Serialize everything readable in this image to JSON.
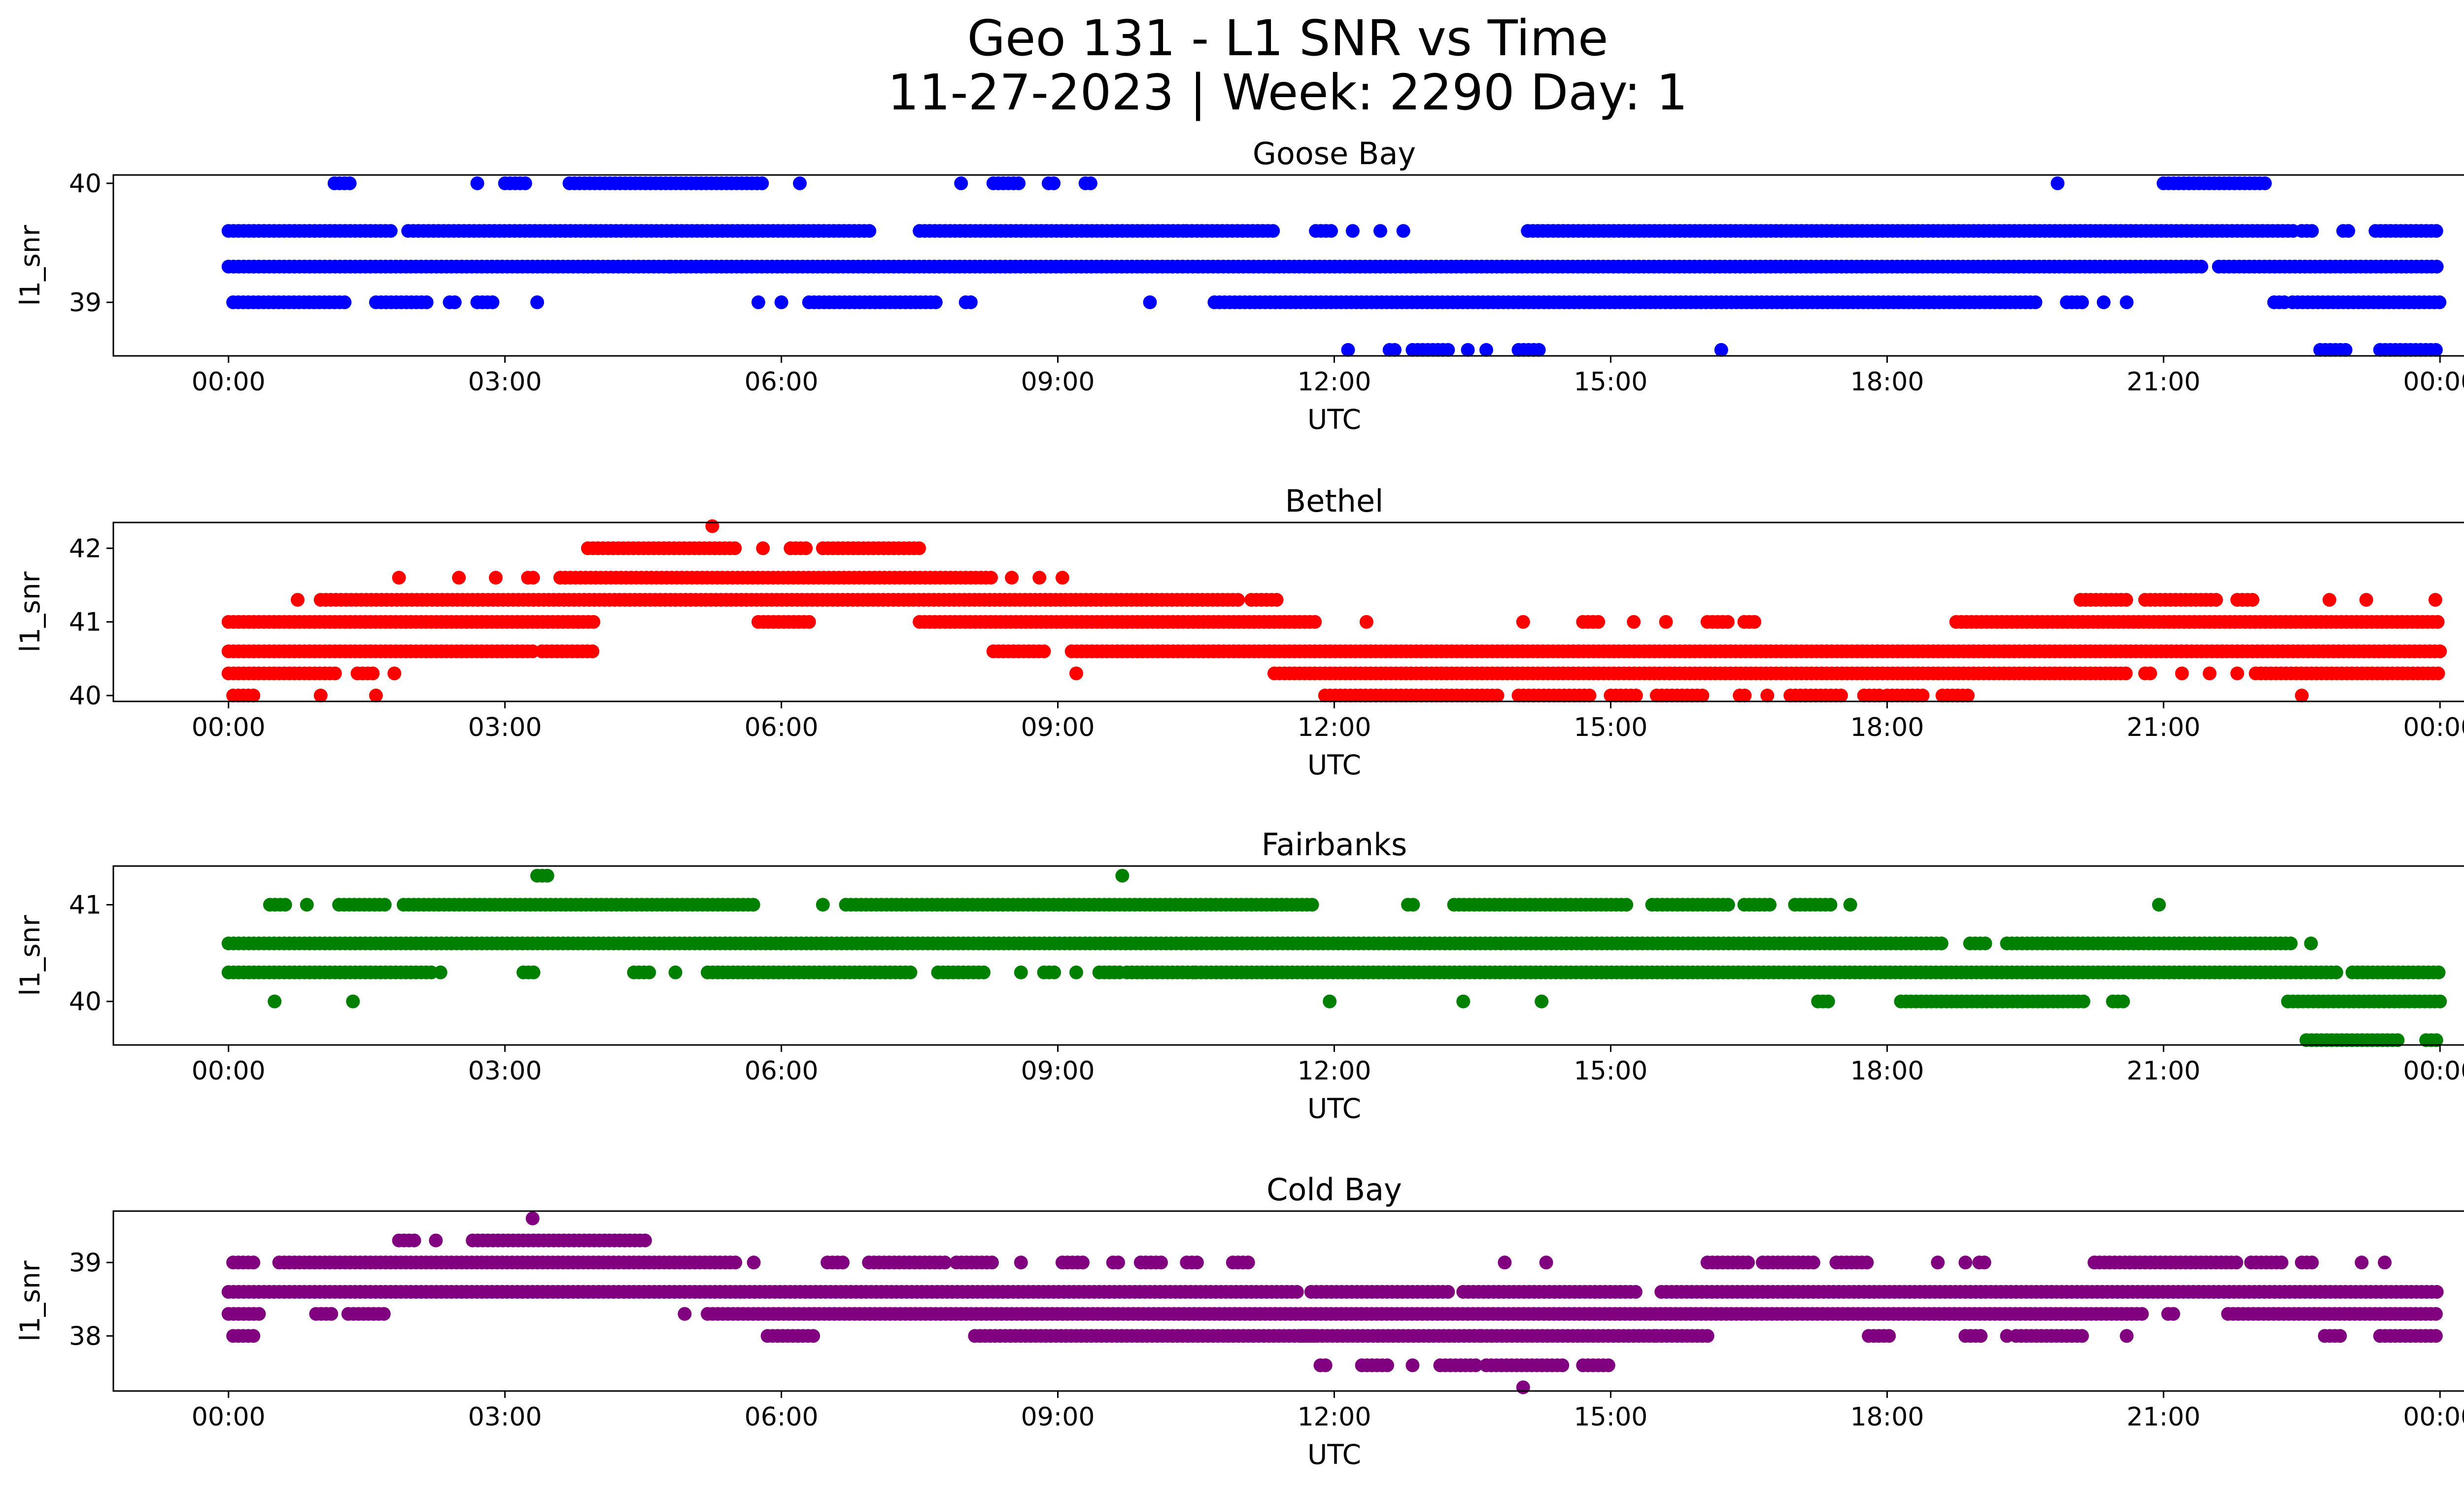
{
  "figure": {
    "title_line1": "Geo 131 - L1 SNR vs Time",
    "title_line2": "11-27-2023 | Week: 2290 Day: 1"
  },
  "chart_data": [
    {
      "type": "scatter",
      "title": "Goose Bay",
      "xlabel": "UTC",
      "ylabel": "l1_snr",
      "color": "#0000ff",
      "xlim": [
        -1.25,
        25.25
      ],
      "ylim": [
        38.55,
        40.07
      ],
      "x_ticks": [
        "00:00",
        "03:00",
        "06:00",
        "09:00",
        "12:00",
        "15:00",
        "18:00",
        "21:00",
        "00:00"
      ],
      "x_tick_values": [
        0,
        3,
        6,
        9,
        12,
        15,
        18,
        21,
        24
      ],
      "y_ticks": [
        39,
        40
      ],
      "levels": [
        {
          "y": 40.0,
          "segments": [
            [
              1.15,
              1.35
            ],
            [
              2.7,
              2.75
            ],
            [
              3.0,
              3.25
            ],
            [
              3.7,
              5.8
            ],
            [
              6.2,
              6.25
            ],
            [
              7.95,
              8.0
            ],
            [
              8.3,
              8.6
            ],
            [
              8.9,
              9.0
            ],
            [
              9.3,
              9.4
            ],
            [
              19.85,
              19.9
            ],
            [
              21.0,
              22.15
            ]
          ]
        },
        {
          "y": 39.6,
          "segments": [
            [
              0.0,
              1.8
            ],
            [
              1.95,
              7.0
            ],
            [
              7.5,
              10.4
            ],
            [
              10.4,
              11.35
            ],
            [
              11.8,
              12.0
            ],
            [
              12.2,
              12.25
            ],
            [
              12.5,
              12.55
            ],
            [
              12.75,
              12.8
            ],
            [
              14.1,
              22.45
            ],
            [
              22.5,
              22.65
            ],
            [
              22.95,
              23.05
            ],
            [
              23.3,
              24.0
            ]
          ]
        },
        {
          "y": 39.3,
          "segments": [
            [
              0.0,
              3.9
            ],
            [
              3.9,
              4.8
            ],
            [
              4.8,
              21.45
            ],
            [
              21.6,
              24.0
            ]
          ]
        },
        {
          "y": 39.0,
          "segments": [
            [
              0.05,
              1.1
            ],
            [
              1.15,
              1.3
            ],
            [
              1.6,
              2.2
            ],
            [
              2.4,
              2.5
            ],
            [
              2.7,
              2.9
            ],
            [
              3.35,
              3.4
            ],
            [
              5.75,
              5.8
            ],
            [
              6.0,
              6.05
            ],
            [
              6.3,
              7.7
            ],
            [
              8.0,
              8.1
            ],
            [
              10.0,
              10.05
            ],
            [
              10.7,
              19.65
            ],
            [
              19.95,
              20.15
            ],
            [
              20.35,
              20.4
            ],
            [
              20.6,
              20.65
            ],
            [
              22.2,
              22.35
            ],
            [
              22.4,
              24.0
            ]
          ]
        },
        {
          "y": 38.6,
          "segments": [
            [
              12.15,
              12.2
            ],
            [
              12.6,
              12.7
            ],
            [
              12.85,
              13.25
            ],
            [
              13.45,
              13.5
            ],
            [
              13.65,
              13.7
            ],
            [
              14.0,
              14.25
            ],
            [
              16.2,
              16.25
            ],
            [
              22.7,
              23.0
            ],
            [
              23.35,
              24.0
            ]
          ]
        }
      ]
    },
    {
      "type": "scatter",
      "title": "Bethel",
      "xlabel": "UTC",
      "ylabel": "l1_snr",
      "color": "#ff0000",
      "xlim": [
        -1.25,
        25.25
      ],
      "ylim": [
        39.92,
        42.35
      ],
      "x_ticks": [
        "00:00",
        "03:00",
        "06:00",
        "09:00",
        "12:00",
        "15:00",
        "18:00",
        "21:00",
        "00:00"
      ],
      "x_tick_values": [
        0,
        3,
        6,
        9,
        12,
        15,
        18,
        21,
        24
      ],
      "y_ticks": [
        40,
        41,
        42
      ],
      "levels": [
        {
          "y": 42.3,
          "segments": [
            [
              5.25,
              5.3
            ]
          ]
        },
        {
          "y": 42.0,
          "segments": [
            [
              3.9,
              5.5
            ],
            [
              5.8,
              5.85
            ],
            [
              6.1,
              6.3
            ],
            [
              6.45,
              7.5
            ]
          ]
        },
        {
          "y": 41.6,
          "segments": [
            [
              1.85,
              1.9
            ],
            [
              2.5,
              2.55
            ],
            [
              2.9,
              2.95
            ],
            [
              3.25,
              3.35
            ],
            [
              3.6,
              8.3
            ],
            [
              8.5,
              8.55
            ],
            [
              8.8,
              8.85
            ],
            [
              9.05,
              9.1
            ]
          ]
        },
        {
          "y": 41.3,
          "segments": [
            [
              0.75,
              0.8
            ],
            [
              1.0,
              11.0
            ],
            [
              11.1,
              11.4
            ],
            [
              20.1,
              20.6
            ],
            [
              20.8,
              21.6
            ],
            [
              21.8,
              22.0
            ],
            [
              22.8,
              22.85
            ],
            [
              23.2,
              23.25
            ],
            [
              23.95,
              24.0
            ]
          ]
        },
        {
          "y": 41.0,
          "segments": [
            [
              0.0,
              4.0
            ],
            [
              5.75,
              6.3
            ],
            [
              7.5,
              11.8
            ],
            [
              12.35,
              12.4
            ],
            [
              14.05,
              14.1
            ],
            [
              14.7,
              14.9
            ],
            [
              15.25,
              15.3
            ],
            [
              15.6,
              15.65
            ],
            [
              16.05,
              16.3
            ],
            [
              16.45,
              16.6
            ],
            [
              18.75,
              24.0
            ]
          ]
        },
        {
          "y": 40.6,
          "segments": [
            [
              0.0,
              3.3
            ],
            [
              3.4,
              3.95
            ],
            [
              8.3,
              8.9
            ],
            [
              9.15,
              24.0
            ]
          ]
        },
        {
          "y": 40.3,
          "segments": [
            [
              0.0,
              1.2
            ],
            [
              1.4,
              1.6
            ],
            [
              1.8,
              1.85
            ],
            [
              9.2,
              9.25
            ],
            [
              11.35,
              20.6
            ],
            [
              20.8,
              20.9
            ],
            [
              21.2,
              21.25
            ],
            [
              21.5,
              21.55
            ],
            [
              21.8,
              21.85
            ],
            [
              22.0,
              24.0
            ]
          ]
        },
        {
          "y": 40.0,
          "segments": [
            [
              0.05,
              0.3
            ],
            [
              1.0,
              1.05
            ],
            [
              1.6,
              1.65
            ],
            [
              11.9,
              13.8
            ],
            [
              14.0,
              14.8
            ],
            [
              15.0,
              15.3
            ],
            [
              15.5,
              16.0
            ],
            [
              16.4,
              16.5
            ],
            [
              16.7,
              16.75
            ],
            [
              16.95,
              17.5
            ],
            [
              17.75,
              17.95
            ],
            [
              18.0,
              18.4
            ],
            [
              18.6,
              18.9
            ],
            [
              22.5,
              22.55
            ]
          ]
        }
      ]
    },
    {
      "type": "scatter",
      "title": "Fairbanks",
      "xlabel": "UTC",
      "ylabel": "l1_snr",
      "color": "#008000",
      "xlim": [
        -1.25,
        25.25
      ],
      "ylim": [
        39.55,
        41.4
      ],
      "x_ticks": [
        "00:00",
        "03:00",
        "06:00",
        "09:00",
        "12:00",
        "15:00",
        "18:00",
        "21:00",
        "00:00"
      ],
      "x_tick_values": [
        0,
        3,
        6,
        9,
        12,
        15,
        18,
        21,
        24
      ],
      "y_ticks": [
        40,
        41
      ],
      "levels": [
        {
          "y": 41.3,
          "segments": [
            [
              3.35,
              3.5
            ],
            [
              9.7,
              9.75
            ]
          ]
        },
        {
          "y": 41.0,
          "segments": [
            [
              0.45,
              0.65
            ],
            [
              0.85,
              0.9
            ],
            [
              1.2,
              1.7
            ],
            [
              1.9,
              5.7
            ],
            [
              6.45,
              6.5
            ],
            [
              6.7,
              11.8
            ],
            [
              12.8,
              12.9
            ],
            [
              13.3,
              15.2
            ],
            [
              15.45,
              16.3
            ],
            [
              16.45,
              16.75
            ],
            [
              17.0,
              17.4
            ],
            [
              17.6,
              17.65
            ],
            [
              20.95,
              21.0
            ]
          ]
        },
        {
          "y": 40.6,
          "segments": [
            [
              0.0,
              18.6
            ],
            [
              18.9,
              19.1
            ],
            [
              19.3,
              22.4
            ],
            [
              22.6,
              22.65
            ]
          ]
        },
        {
          "y": 40.3,
          "segments": [
            [
              0.0,
              2.2
            ],
            [
              2.3,
              2.35
            ],
            [
              3.2,
              3.35
            ],
            [
              4.4,
              4.6
            ],
            [
              4.85,
              4.9
            ],
            [
              5.2,
              7.4
            ],
            [
              7.7,
              8.2
            ],
            [
              8.6,
              8.65
            ],
            [
              8.85,
              9.0
            ],
            [
              9.2,
              9.25
            ],
            [
              9.45,
              9.7
            ],
            [
              9.75,
              10.5
            ],
            [
              10.5,
              22.9
            ],
            [
              23.05,
              24.0
            ]
          ]
        },
        {
          "y": 40.0,
          "segments": [
            [
              0.5,
              0.55
            ],
            [
              1.35,
              1.4
            ],
            [
              11.95,
              12.0
            ],
            [
              13.4,
              13.45
            ],
            [
              14.25,
              14.3
            ],
            [
              17.25,
              17.4
            ],
            [
              18.15,
              20.15
            ],
            [
              20.45,
              20.6
            ],
            [
              22.35,
              24.0
            ]
          ]
        },
        {
          "y": 39.6,
          "segments": [
            [
              22.55,
              23.55
            ],
            [
              23.85,
              24.0
            ]
          ]
        }
      ]
    },
    {
      "type": "scatter",
      "title": "Cold Bay",
      "xlabel": "UTC",
      "ylabel": "l1_snr",
      "color": "#800080",
      "xlim": [
        -1.25,
        25.25
      ],
      "ylim": [
        37.25,
        39.7
      ],
      "x_ticks": [
        "00:00",
        "03:00",
        "06:00",
        "09:00",
        "12:00",
        "15:00",
        "18:00",
        "21:00",
        "00:00"
      ],
      "x_tick_values": [
        0,
        3,
        6,
        9,
        12,
        15,
        18,
        21,
        24
      ],
      "y_ticks": [
        38,
        39
      ],
      "levels": [
        {
          "y": 39.6,
          "segments": [
            [
              3.3,
              3.35
            ]
          ]
        },
        {
          "y": 39.3,
          "segments": [
            [
              1.85,
              2.05
            ],
            [
              2.25,
              2.3
            ],
            [
              2.65,
              4.55
            ]
          ]
        },
        {
          "y": 39.0,
          "segments": [
            [
              0.05,
              0.3
            ],
            [
              0.55,
              5.5
            ],
            [
              5.7,
              5.75
            ],
            [
              6.5,
              6.7
            ],
            [
              6.95,
              7.8
            ],
            [
              7.9,
              8.3
            ],
            [
              8.6,
              8.65
            ],
            [
              9.05,
              9.3
            ],
            [
              9.6,
              9.7
            ],
            [
              9.9,
              10.15
            ],
            [
              10.4,
              10.55
            ],
            [
              10.9,
              11.1
            ],
            [
              13.85,
              13.9
            ],
            [
              14.3,
              14.35
            ],
            [
              16.05,
              16.5
            ],
            [
              16.65,
              17.2
            ],
            [
              17.45,
              17.8
            ],
            [
              18.55,
              18.6
            ],
            [
              18.85,
              18.9
            ],
            [
              19.0,
              19.1
            ],
            [
              20.25,
              21.8
            ],
            [
              21.95,
              22.3
            ],
            [
              22.5,
              22.65
            ],
            [
              23.15,
              23.2
            ],
            [
              23.4,
              23.45
            ]
          ]
        },
        {
          "y": 38.6,
          "segments": [
            [
              0.0,
              5.6
            ],
            [
              5.6,
              11.6
            ],
            [
              11.75,
              13.25
            ],
            [
              13.4,
              15.3
            ],
            [
              15.55,
              24.0
            ]
          ]
        },
        {
          "y": 38.3,
          "segments": [
            [
              0.0,
              0.35
            ],
            [
              0.95,
              1.15
            ],
            [
              1.3,
              1.7
            ],
            [
              4.95,
              5.0
            ],
            [
              5.2,
              20.8
            ],
            [
              21.05,
              21.15
            ],
            [
              21.7,
              24.0
            ]
          ]
        },
        {
          "y": 38.0,
          "segments": [
            [
              0.05,
              0.3
            ],
            [
              5.85,
              6.35
            ],
            [
              8.1,
              11.8
            ],
            [
              11.65,
              13.6
            ],
            [
              13.6,
              15.5
            ],
            [
              15.5,
              16.05
            ],
            [
              17.8,
              18.05
            ],
            [
              18.85,
              19.05
            ],
            [
              19.3,
              19.3
            ],
            [
              19.4,
              20.15
            ],
            [
              20.6,
              20.65
            ],
            [
              22.75,
              22.95
            ],
            [
              23.35,
              24.0
            ]
          ]
        },
        {
          "y": 37.6,
          "segments": [
            [
              11.85,
              11.95
            ],
            [
              12.3,
              12.6
            ],
            [
              12.85,
              12.9
            ],
            [
              13.15,
              13.55
            ],
            [
              13.65,
              14.5
            ],
            [
              14.7,
              15.0
            ]
          ]
        },
        {
          "y": 37.3,
          "segments": [
            [
              14.05,
              14.1
            ]
          ]
        }
      ]
    }
  ]
}
